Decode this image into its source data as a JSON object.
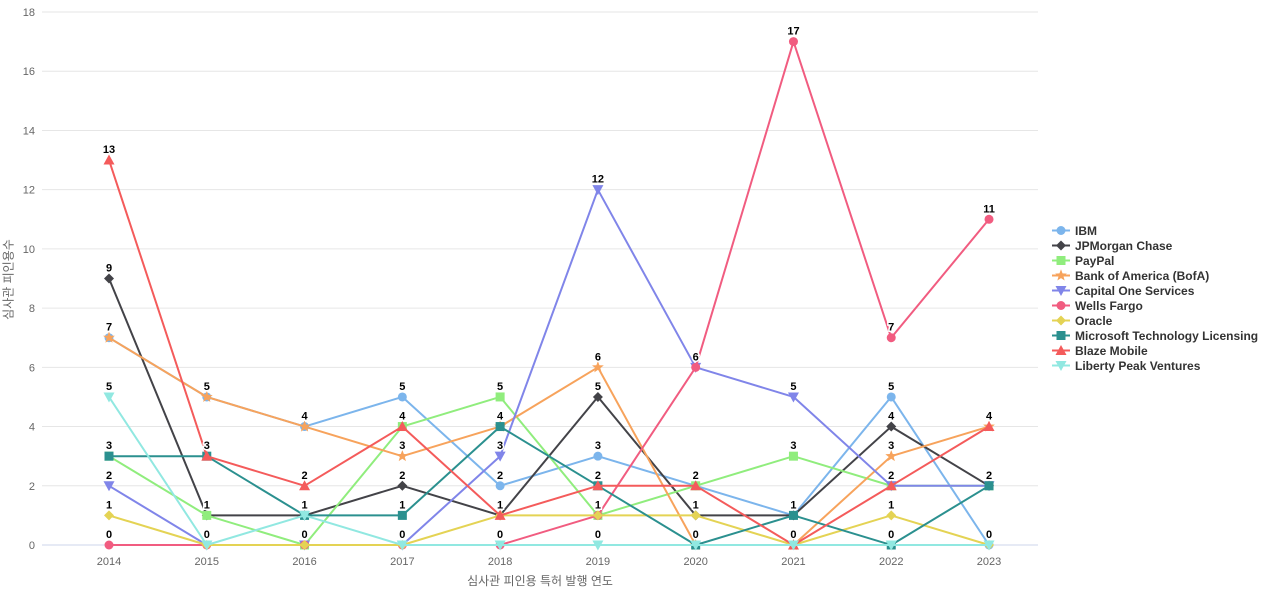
{
  "chart_data": {
    "type": "line",
    "title": "",
    "xlabel": "심사관 피인용 특허 발행 연도",
    "ylabel": "심사관 피인용수",
    "x_categories": [
      "2014",
      "2015",
      "2016",
      "2017",
      "2018",
      "2019",
      "2020",
      "2021",
      "2022",
      "2023"
    ],
    "ylim": [
      0,
      18
    ],
    "ytick_step": 2,
    "yticks": [
      0,
      2,
      4,
      6,
      8,
      10,
      12,
      14,
      16,
      18
    ],
    "grid": "horizontal",
    "legend_position": "right",
    "data_labels": true,
    "series": [
      {
        "name": "IBM",
        "color": "#7cb5ec",
        "marker": "circle-icon",
        "values": [
          7,
          5,
          4,
          5,
          2,
          3,
          2,
          1,
          5,
          0
        ]
      },
      {
        "name": "JPMorgan Chase",
        "color": "#434348",
        "marker": "diamond-icon",
        "values": [
          9,
          1,
          1,
          2,
          1,
          5,
          1,
          1,
          4,
          2
        ]
      },
      {
        "name": "PayPal",
        "color": "#90ed7d",
        "marker": "square-icon",
        "values": [
          3,
          1,
          0,
          4,
          5,
          1,
          2,
          3,
          2,
          2
        ]
      },
      {
        "name": "Bank of America (BofA)",
        "color": "#f7a35c",
        "marker": "star-icon",
        "values": [
          7,
          5,
          4,
          3,
          4,
          6,
          0,
          0,
          3,
          4
        ]
      },
      {
        "name": "Capital One Services",
        "color": "#8085e9",
        "marker": "triangle-down-icon",
        "values": [
          2,
          0,
          0,
          0,
          3,
          12,
          6,
          5,
          2,
          2
        ]
      },
      {
        "name": "Wells Fargo",
        "color": "#f15c80",
        "marker": "circle-icon",
        "values": [
          0,
          0,
          0,
          0,
          0,
          1,
          6,
          17,
          7,
          11
        ]
      },
      {
        "name": "Oracle",
        "color": "#e4d354",
        "marker": "diamond-icon",
        "values": [
          1,
          0,
          0,
          0,
          1,
          1,
          1,
          0,
          1,
          0
        ]
      },
      {
        "name": "Microsoft Technology Licensing",
        "color": "#2b908f",
        "marker": "square-icon",
        "values": [
          3,
          3,
          1,
          1,
          4,
          2,
          0,
          1,
          0,
          2
        ]
      },
      {
        "name": "Blaze Mobile",
        "color": "#f45b5b",
        "marker": "triangle-up-icon",
        "values": [
          13,
          3,
          2,
          4,
          1,
          2,
          2,
          0,
          2,
          4
        ]
      },
      {
        "name": "Liberty Peak Ventures",
        "color": "#91e8e1",
        "marker": "triangle-down-icon",
        "values": [
          5,
          0,
          1,
          0,
          0,
          0,
          0,
          0,
          0,
          0
        ]
      }
    ],
    "colors": {
      "gridline": "#e6e6e6",
      "axis_line": "#ccd6eb",
      "tick_label": "#666666",
      "axis_title": "#666666",
      "data_label": "#000000",
      "legend_text": "#333333",
      "background": "#ffffff"
    }
  }
}
